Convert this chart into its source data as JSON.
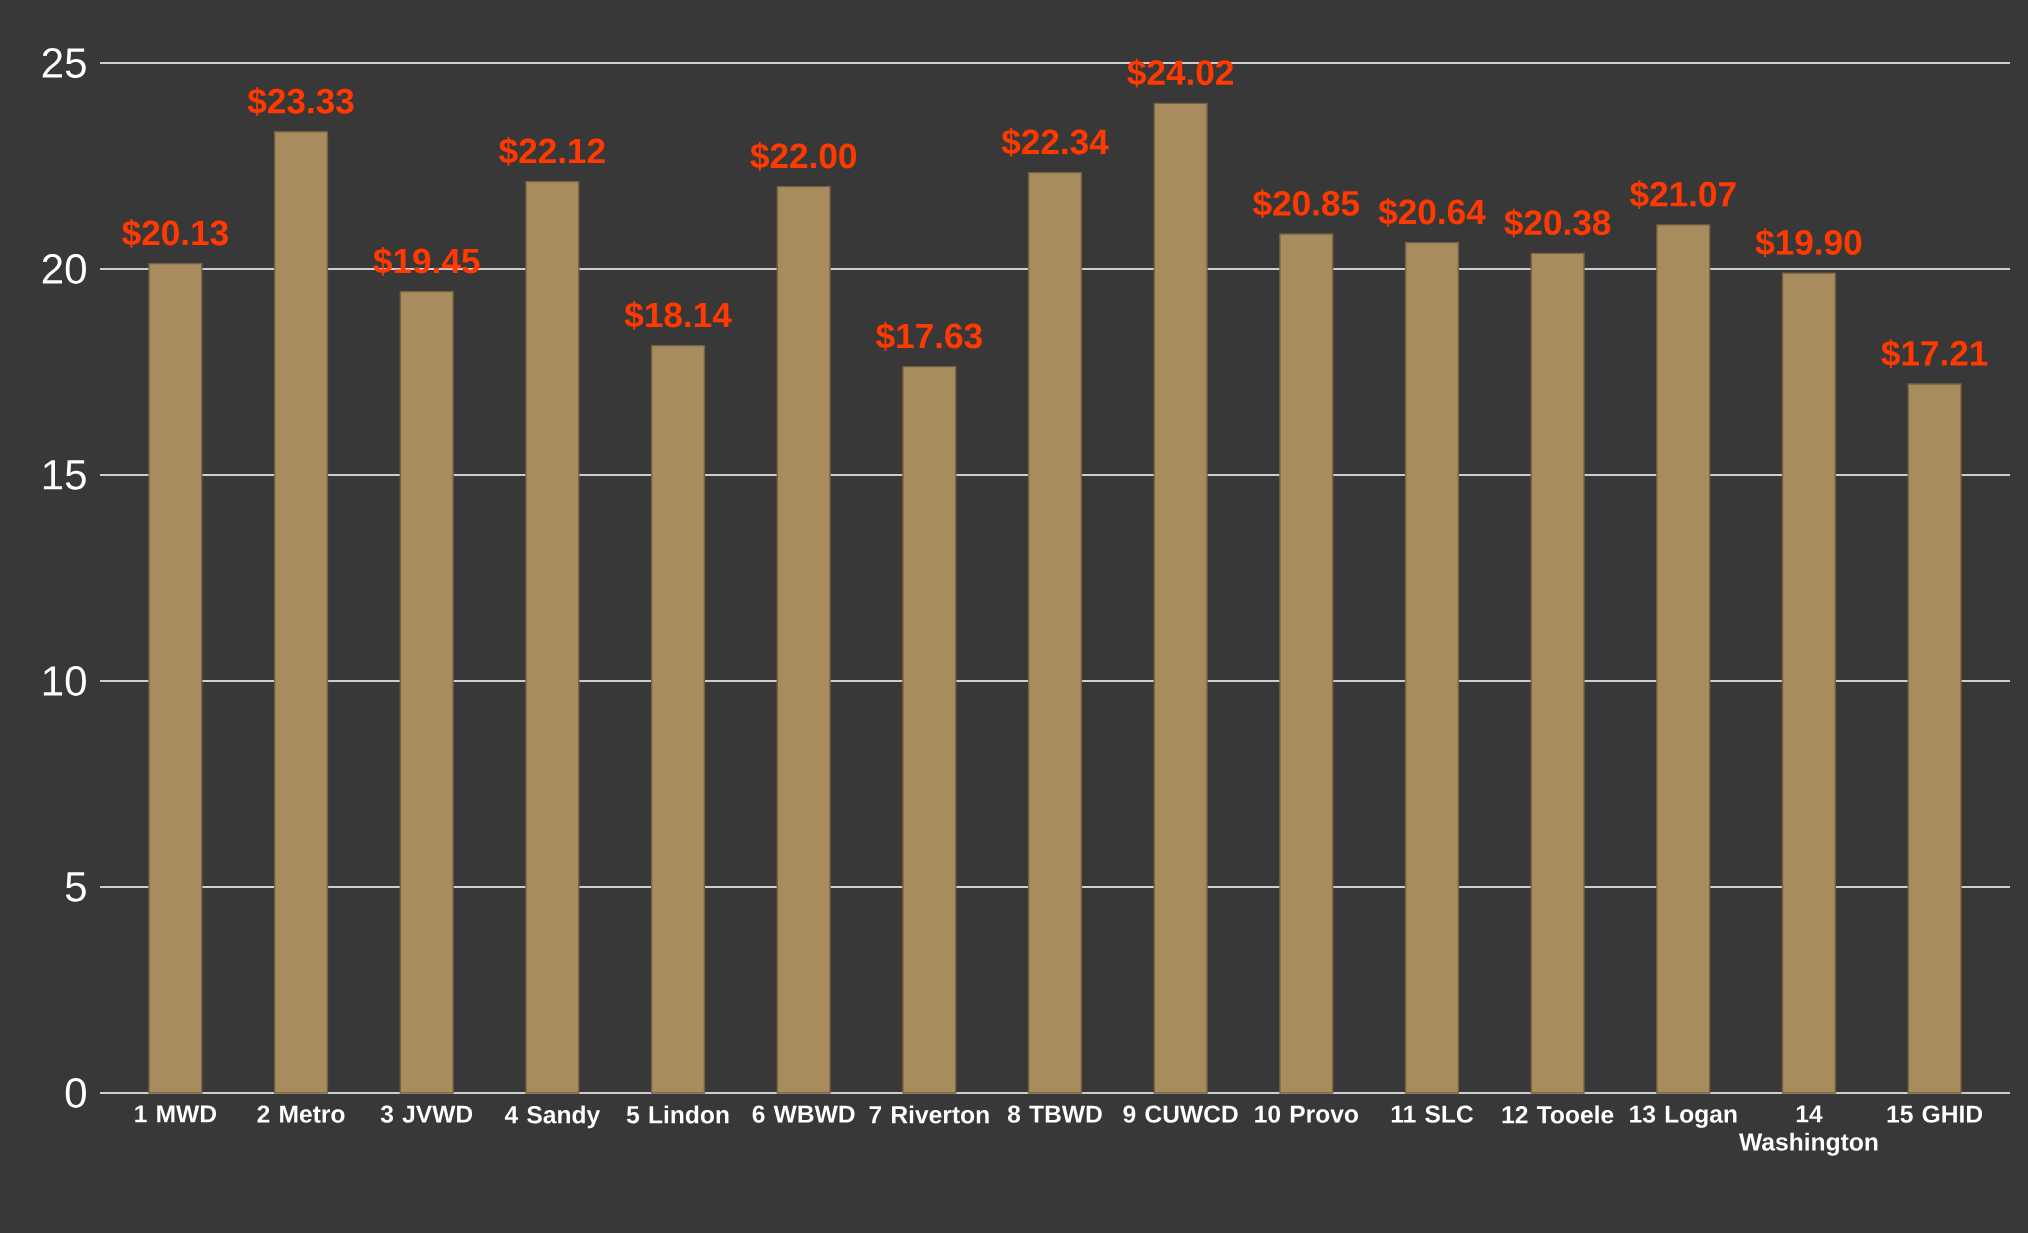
{
  "chart_data": {
    "type": "bar",
    "categories": [
      "1 MWD",
      "2 Metro",
      "3 JVWD",
      "4 Sandy",
      "5 Lindon",
      "6 WBWD",
      "7 Riverton",
      "8 TBWD",
      "9 CUWCD",
      "10 Provo",
      "11 SLC",
      "12 Tooele",
      "13 Logan",
      "14 Washington",
      "15 GHID"
    ],
    "values": [
      20.13,
      23.33,
      19.45,
      22.12,
      18.14,
      22.0,
      17.63,
      22.34,
      24.02,
      20.85,
      20.64,
      20.38,
      21.07,
      19.9,
      17.21
    ],
    "value_labels": [
      "$20.13",
      "$23.33",
      "$19.45",
      "$22.12",
      "$18.14",
      "$22.00",
      "$17.63",
      "$22.34",
      "$24.02",
      "$20.85",
      "$20.64",
      "$20.38",
      "$21.07",
      "$19.90",
      "$17.21"
    ],
    "color": "#a88c5e",
    "ylim": [
      0,
      25
    ],
    "yticks": [
      0,
      5,
      10,
      15,
      20,
      25
    ],
    "grid": "y"
  }
}
